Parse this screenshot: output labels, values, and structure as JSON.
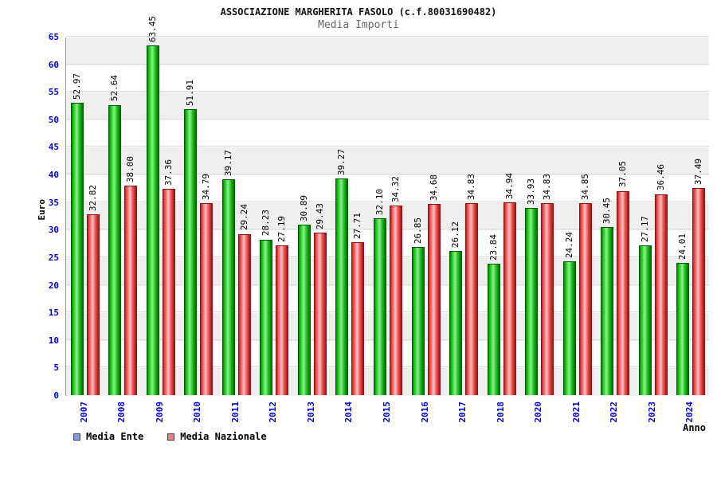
{
  "header": {
    "title": "ASSOCIAZIONE MARGHERITA FASOLO (c.f.80031690482)",
    "subtitle": "Media Importi"
  },
  "chart_data": {
    "type": "bar",
    "title": "ASSOCIAZIONE MARGHERITA FASOLO (c.f.80031690482)",
    "subtitle": "Media Importi",
    "xlabel": "Anno",
    "ylabel": "Euro",
    "ylim": [
      0,
      65
    ],
    "ytick_step": 5,
    "grid": true,
    "legend_position": "bottom-left",
    "categories": [
      "2007",
      "2008",
      "2009",
      "2010",
      "2011",
      "2012",
      "2013",
      "2014",
      "2015",
      "2016",
      "2017",
      "2018",
      "2020",
      "2021",
      "2022",
      "2023",
      "2024"
    ],
    "series": [
      {
        "name": "Media Ente",
        "bar_color": "#00cc00",
        "legend_swatch": "#7b9fe0",
        "values": [
          52.97,
          52.64,
          63.45,
          51.91,
          39.17,
          28.23,
          30.89,
          39.27,
          32.1,
          26.85,
          26.12,
          23.84,
          33.93,
          24.24,
          30.45,
          27.17,
          24.01
        ]
      },
      {
        "name": "Media Nazionale",
        "bar_color": "#ff5555",
        "legend_swatch": "#f08080",
        "values": [
          32.82,
          38.0,
          37.36,
          34.79,
          29.24,
          27.19,
          29.43,
          27.71,
          34.32,
          34.68,
          34.83,
          34.94,
          34.83,
          34.85,
          37.05,
          36.46,
          37.49
        ]
      }
    ]
  },
  "colors": {
    "axis_text": "#0000cc",
    "value_label": "#000000",
    "band_gray": "#efefef",
    "band_white": "#ffffff",
    "gridline": "#dcdcdc",
    "axis_line": "#999999"
  }
}
